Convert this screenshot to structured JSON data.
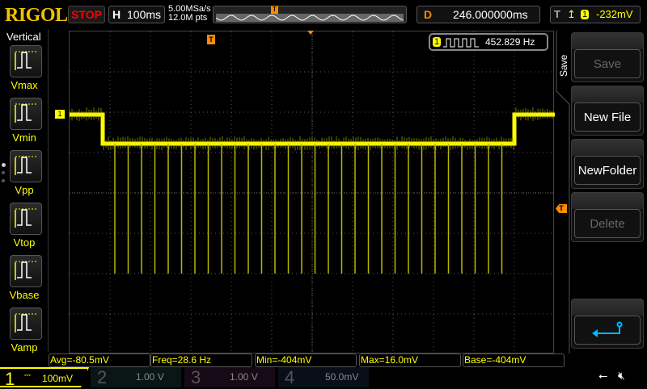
{
  "brand": "RIGOL",
  "run_state": "STOP",
  "horizontal": {
    "key": "H",
    "timebase": "100ms"
  },
  "acquisition": {
    "sample_rate": "5.00MSa/s",
    "memory_depth": "12.0M pts"
  },
  "delay": {
    "key": "D",
    "value": "246.000000ms"
  },
  "trigger": {
    "key": "T",
    "edge_icon": "rising-edge-icon",
    "source": "1",
    "level": "-232mV"
  },
  "frequency_counter": {
    "channel": "1",
    "value": "452.829 Hz"
  },
  "markers": {
    "trigger_position": "T",
    "trigger_level": "T",
    "channel1": "1"
  },
  "vertical_panel": {
    "title": "Vertical",
    "items": [
      {
        "label": "Vmax"
      },
      {
        "label": "Vmin"
      },
      {
        "label": "Vpp"
      },
      {
        "label": "Vtop"
      },
      {
        "label": "Vbase"
      },
      {
        "label": "Vamp"
      }
    ]
  },
  "save_menu": {
    "title": "Save",
    "buttons": [
      {
        "label": "Save",
        "enabled": false
      },
      {
        "label": "New File",
        "enabled": true
      },
      {
        "label": "NewFolder",
        "enabled": true
      },
      {
        "label": "Delete",
        "enabled": false
      }
    ],
    "return_icon": "return-arrow-icon"
  },
  "measurements": [
    "Avg=-80.5mV",
    "Freq=28.6 Hz",
    "Min=-404mV",
    "Max=16.0mV",
    "Base=-404mV"
  ],
  "channels": [
    {
      "num": "1",
      "scale": "100mV",
      "color": "#ffff00",
      "active": true
    },
    {
      "num": "2",
      "scale": "1.00 V",
      "color": "#00c0c0",
      "active": false
    },
    {
      "num": "3",
      "scale": "1.00 V",
      "color": "#c000c0",
      "active": false
    },
    {
      "num": "4",
      "scale": "50.0mV",
      "color": "#2080ff",
      "active": false
    }
  ],
  "status_icons": [
    "usb-icon",
    "speaker-muted-icon"
  ],
  "colors": {
    "trace": "#ffff00",
    "trigger": "#ff8c00",
    "accent": "#00b8ff"
  }
}
